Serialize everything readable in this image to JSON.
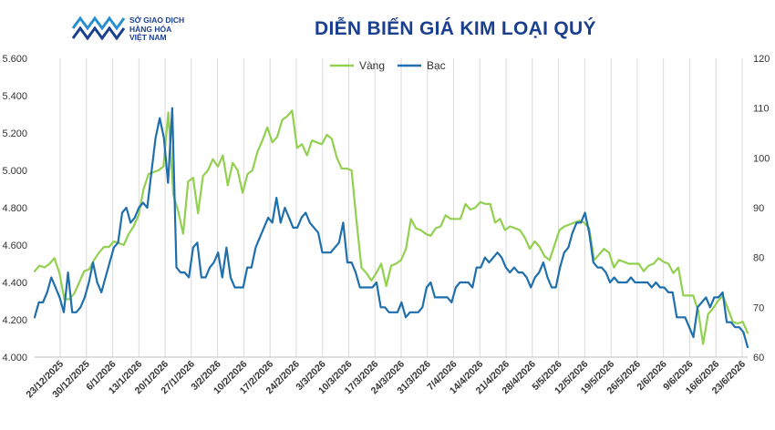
{
  "header": {
    "logo_lines": [
      "SỞ GIAO DỊCH",
      "HÀNG HÓA",
      "VIỆT NAM"
    ],
    "title": "DIỄN BIẾN GIÁ KIM LOẠI QUÝ"
  },
  "colors": {
    "gold": "#92d050",
    "silver": "#1f6fad",
    "grid": "#d9d9d9",
    "brand": "#1b3f8f"
  },
  "chart_data": {
    "type": "line",
    "title": "DIỄN BIẾN GIÁ KIM LOẠI QUÝ",
    "legend_position": "top-center",
    "grid": "vertical",
    "y_left": {
      "min": 4000,
      "max": 5600,
      "ticks": [
        "4.000",
        "4.200",
        "4.400",
        "4.600",
        "4.800",
        "5.000",
        "5.200",
        "5.400",
        "5.600"
      ],
      "values": [
        4000,
        4200,
        4400,
        4600,
        4800,
        5000,
        5200,
        5400,
        5600
      ]
    },
    "y_right": {
      "min": 60,
      "max": 120,
      "ticks": [
        "60",
        "70",
        "80",
        "90",
        "100",
        "110",
        "120"
      ],
      "values": [
        60,
        70,
        80,
        90,
        100,
        110,
        120
      ]
    },
    "x_ticks": [
      "23/12/2025",
      "30/12/2025",
      "6/1/2026",
      "13/1/2026",
      "20/1/2026",
      "27/1/2026",
      "3/2/2026",
      "10/2/2026",
      "17/2/2026",
      "24/2/2026",
      "3/3/2026",
      "10/3/2026",
      "17/3/2026",
      "24/3/2026",
      "31/3/2026",
      "7/4/2026",
      "14/4/2026",
      "21/4/2026",
      "28/4/2026",
      "5/5/2026",
      "12/5/2026",
      "19/5/2026",
      "26/5/2026",
      "2/6/2026",
      "9/6/2026",
      "16/6/2026",
      "23/6/2026"
    ],
    "series": [
      {
        "name": "Vàng",
        "axis": "left",
        "values": [
          4460,
          4490,
          4480,
          4500,
          4530,
          4450,
          4310,
          4310,
          4340,
          4400,
          4460,
          4470,
          4520,
          4560,
          4590,
          4590,
          4620,
          4610,
          4600,
          4660,
          4700,
          4760,
          4900,
          4980,
          4990,
          5000,
          5020,
          5310,
          4870,
          4780,
          4660,
          4940,
          4960,
          4770,
          4970,
          5000,
          5060,
          5020,
          5080,
          4920,
          5040,
          5000,
          4880,
          4980,
          5000,
          5100,
          5160,
          5230,
          5150,
          5180,
          5270,
          5290,
          5320,
          5120,
          5140,
          5080,
          5160,
          5150,
          5140,
          5190,
          5170,
          5070,
          5010,
          5010,
          5000,
          4730,
          4480,
          4450,
          4410,
          4450,
          4500,
          4380,
          4490,
          4500,
          4520,
          4580,
          4740,
          4690,
          4680,
          4660,
          4650,
          4690,
          4700,
          4760,
          4740,
          4740,
          4740,
          4820,
          4790,
          4800,
          4830,
          4820,
          4820,
          4720,
          4740,
          4680,
          4700,
          4690,
          4680,
          4640,
          4580,
          4620,
          4590,
          4540,
          4520,
          4600,
          4680,
          4700,
          4710,
          4720,
          4730,
          4720,
          4690,
          4520,
          4550,
          4580,
          4560,
          4480,
          4520,
          4510,
          4500,
          4500,
          4500,
          4460,
          4490,
          4500,
          4530,
          4510,
          4500,
          4450,
          4480,
          4330,
          4330,
          4330,
          4250,
          4070,
          4230,
          4260,
          4300,
          4330,
          4260,
          4190,
          4180,
          4190,
          4130
        ]
      },
      {
        "name": "Bạc",
        "axis": "right",
        "values": [
          68,
          71,
          71,
          73,
          76,
          74,
          72,
          69,
          77,
          69,
          69,
          70,
          72,
          75,
          79,
          75,
          73,
          76,
          79,
          82,
          83,
          89,
          90,
          87,
          88,
          90,
          91,
          90,
          97,
          104,
          108,
          104,
          95,
          110,
          78,
          77,
          77,
          76,
          82,
          83,
          76,
          76,
          78,
          79,
          81,
          76,
          82,
          76,
          74,
          74,
          74,
          78,
          78,
          82,
          84,
          86,
          88,
          87,
          92,
          87,
          90,
          88,
          86,
          86,
          88,
          89,
          87,
          86,
          85,
          81,
          81,
          81,
          82,
          83,
          87,
          79,
          79,
          77,
          74,
          74,
          74,
          74,
          75,
          70,
          70,
          69,
          69,
          69,
          71,
          68,
          69,
          69,
          69,
          70,
          74,
          75,
          72,
          72,
          72,
          72,
          71,
          74,
          75,
          75,
          75,
          74,
          78,
          78,
          80,
          79,
          80,
          81,
          80,
          78,
          77,
          78,
          77,
          77,
          76,
          74,
          76,
          77,
          79,
          76,
          74,
          74,
          78,
          81,
          82,
          85,
          87,
          87,
          89,
          85,
          79,
          78,
          78,
          77,
          75,
          76,
          75,
          75,
          75,
          76,
          75,
          75,
          75,
          75,
          74,
          75,
          74,
          74,
          73,
          73,
          68,
          68,
          68,
          66,
          64,
          70,
          71,
          72,
          70,
          72,
          72,
          73,
          67,
          67,
          66,
          66,
          65,
          62
        ]
      }
    ]
  }
}
